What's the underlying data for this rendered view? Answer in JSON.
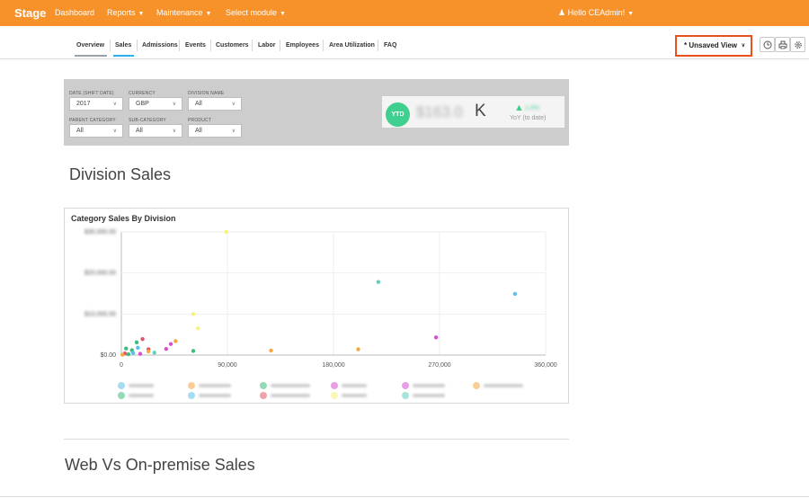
{
  "topbar": {
    "brand": "Stage",
    "nav": [
      "Dashboard",
      "Reports",
      "Maintenance",
      "Select module"
    ],
    "user": "Hello CEAdmin!",
    "color": "#f7922b"
  },
  "subnav": {
    "tabs": [
      "Overview",
      "Sales",
      "Admissions",
      "Events",
      "Customers",
      "Labor",
      "Employees",
      "Area Utilization",
      "FAQ"
    ],
    "active_tab": "Sales",
    "view_label": "* Unsaved View"
  },
  "filters": {
    "date_label": "DATE (SHIFT DATE)",
    "date_value": "2017",
    "currency_label": "CURRENCY",
    "currency_value": "GBP",
    "division_label": "DIVISION NAME",
    "division_value": "All",
    "parent_label": "PARENT CATEGORY",
    "parent_value": "All",
    "sub_label": "SUB-CATEGORY",
    "sub_value": "All",
    "product_label": "PRODUCT",
    "product_value": "All"
  },
  "kpi": {
    "badge": "YTD",
    "value": "$163.0",
    "suffix": "K",
    "change": "1.0%",
    "caption": "YoY (to date)",
    "accent": "#3fcf8e"
  },
  "section": {
    "title": "Division Sales",
    "next_title": "Web Vs On-premise Sales"
  },
  "chart_data": {
    "type": "scatter",
    "title": "Category Sales By Division",
    "xlim": [
      0,
      360000
    ],
    "ylim": [
      0,
      30000
    ],
    "x_ticks": [
      "0",
      "90,000",
      "180,000",
      "270,000",
      "360,000"
    ],
    "y_tick_labels": [
      "$0.00",
      "$10,000.00",
      "$20,000.00",
      "$30,000.00"
    ],
    "grid": true,
    "legend_position": "bottom",
    "points": [
      {
        "x": 89000,
        "y": 30000,
        "color": "#f7f27c"
      },
      {
        "x": 218000,
        "y": 17800,
        "color": "#5fd0c0"
      },
      {
        "x": 334000,
        "y": 14900,
        "color": "#5bc0eb"
      },
      {
        "x": 61000,
        "y": 10000,
        "color": "#f7f27c"
      },
      {
        "x": 65000,
        "y": 6500,
        "color": "#f7f27c"
      },
      {
        "x": 267000,
        "y": 4300,
        "color": "#d94fd0"
      },
      {
        "x": 46000,
        "y": 3400,
        "color": "#f6a742"
      },
      {
        "x": 42000,
        "y": 2700,
        "color": "#d94fd0"
      },
      {
        "x": 18000,
        "y": 3900,
        "color": "#e05565"
      },
      {
        "x": 13000,
        "y": 3100,
        "color": "#3dbb7a"
      },
      {
        "x": 4000,
        "y": 1600,
        "color": "#3dbb7a"
      },
      {
        "x": 9000,
        "y": 1200,
        "color": "#3dbb7a"
      },
      {
        "x": 14000,
        "y": 1800,
        "color": "#5bc0eb"
      },
      {
        "x": 23000,
        "y": 1400,
        "color": "#e05565"
      },
      {
        "x": 23000,
        "y": 900,
        "color": "#f6a742"
      },
      {
        "x": 38000,
        "y": 1500,
        "color": "#d94fd0"
      },
      {
        "x": 61000,
        "y": 1000,
        "color": "#3dbb7a"
      },
      {
        "x": 127000,
        "y": 1100,
        "color": "#f6a742"
      },
      {
        "x": 201000,
        "y": 1400,
        "color": "#f6a742"
      },
      {
        "x": 3000,
        "y": 400,
        "color": "#e05565"
      },
      {
        "x": 6000,
        "y": 200,
        "color": "#3dbb7a"
      },
      {
        "x": 10000,
        "y": 500,
        "color": "#5bc0eb"
      },
      {
        "x": 16000,
        "y": 300,
        "color": "#d94fd0"
      },
      {
        "x": 28000,
        "y": 600,
        "color": "#5fd0c0"
      },
      {
        "x": 1000,
        "y": 100,
        "color": "#f6a742"
      }
    ],
    "legend_colors": [
      "#5bc0eb",
      "#f6a742",
      "#3dbb7a",
      "#d94fd0",
      "#d94fd0",
      "#f6a742",
      "#3dbb7a",
      "#5bc0eb",
      "#e05565",
      "#f7f27c",
      "#5fd0c0"
    ]
  }
}
